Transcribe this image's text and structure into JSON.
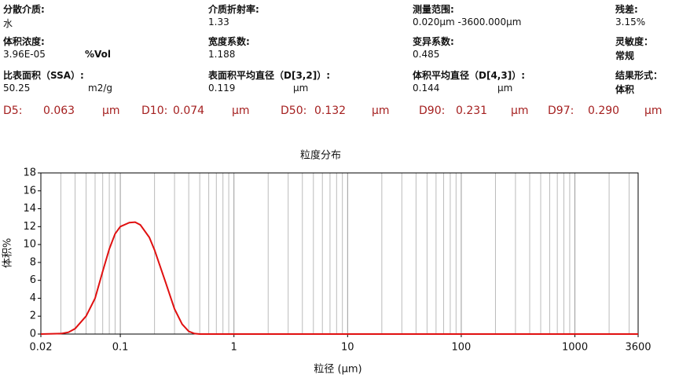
{
  "fields": [
    {
      "label": "分散介质:",
      "value": "水"
    },
    {
      "label": "介质折射率:",
      "value": "1.33"
    },
    {
      "label": "测量范围:",
      "value": "0.020μm -3600.000μm"
    },
    {
      "label": "残差:",
      "value": "3.15%"
    },
    {
      "label": "体积浓度:",
      "value": "3.96E-05",
      "unit": "%Vol"
    },
    {
      "label": "宽度系数:",
      "value": "1.188"
    },
    {
      "label": "变异系数:",
      "value": "0.485"
    },
    {
      "label": "灵敏度：",
      "value": "常规"
    },
    {
      "label": "比表面积（SSA）:",
      "value": "50.25",
      "unit": "m2/g"
    },
    {
      "label": "表面积平均直径（D[3,2]）:",
      "value": "0.119",
      "unit": "μm"
    },
    {
      "label": "体积平均直径（D[4,3]）:",
      "value": "0.144",
      "unit": "μm"
    },
    {
      "label": "结果形式：",
      "value": "体积"
    }
  ],
  "d_values": [
    {
      "label": "D5:",
      "value": "0.063",
      "unit": "μm"
    },
    {
      "label": "D10:",
      "value": "0.074",
      "unit": "μm"
    },
    {
      "label": "D50:",
      "value": "0.132",
      "unit": "μm"
    },
    {
      "label": "D90:",
      "value": "0.231",
      "unit": "μm"
    },
    {
      "label": "D97:",
      "value": "0.290",
      "unit": "μm"
    }
  ],
  "chart_data": {
    "type": "line",
    "title": "粒度分布",
    "xlabel": "粒径 (μm)",
    "ylabel": "体积%",
    "xscale": "log",
    "xlim": [
      0.02,
      3600
    ],
    "xticks": [
      0.02,
      0.1,
      1,
      10,
      100,
      1000,
      3600
    ],
    "xgrid_minor": [
      0.03,
      0.04,
      0.05,
      0.06,
      0.07,
      0.08,
      0.09,
      0.2,
      0.3,
      0.4,
      0.5,
      0.6,
      0.7,
      0.8,
      0.9,
      2,
      3,
      4,
      5,
      6,
      7,
      8,
      9,
      20,
      30,
      40,
      50,
      60,
      70,
      80,
      90,
      200,
      300,
      400,
      500,
      600,
      700,
      800,
      900,
      2000,
      3000
    ],
    "ylim": [
      0,
      18
    ],
    "yticks": [
      0,
      2,
      4,
      6,
      8,
      10,
      12,
      14,
      16,
      18
    ],
    "grid": true,
    "x": [
      0.02,
      0.03,
      0.035,
      0.04,
      0.05,
      0.06,
      0.07,
      0.08,
      0.09,
      0.1,
      0.12,
      0.135,
      0.15,
      0.18,
      0.2,
      0.25,
      0.3,
      0.35,
      0.4,
      0.45,
      0.5,
      1,
      3600
    ],
    "series": [
      {
        "color": "#e01010",
        "values": [
          0,
          0.05,
          0.2,
          0.6,
          2.0,
          4.0,
          7.0,
          9.5,
          11.2,
          12.0,
          12.45,
          12.5,
          12.2,
          10.8,
          9.4,
          5.8,
          2.8,
          1.1,
          0.3,
          0.05,
          0,
          0,
          0
        ]
      }
    ]
  }
}
